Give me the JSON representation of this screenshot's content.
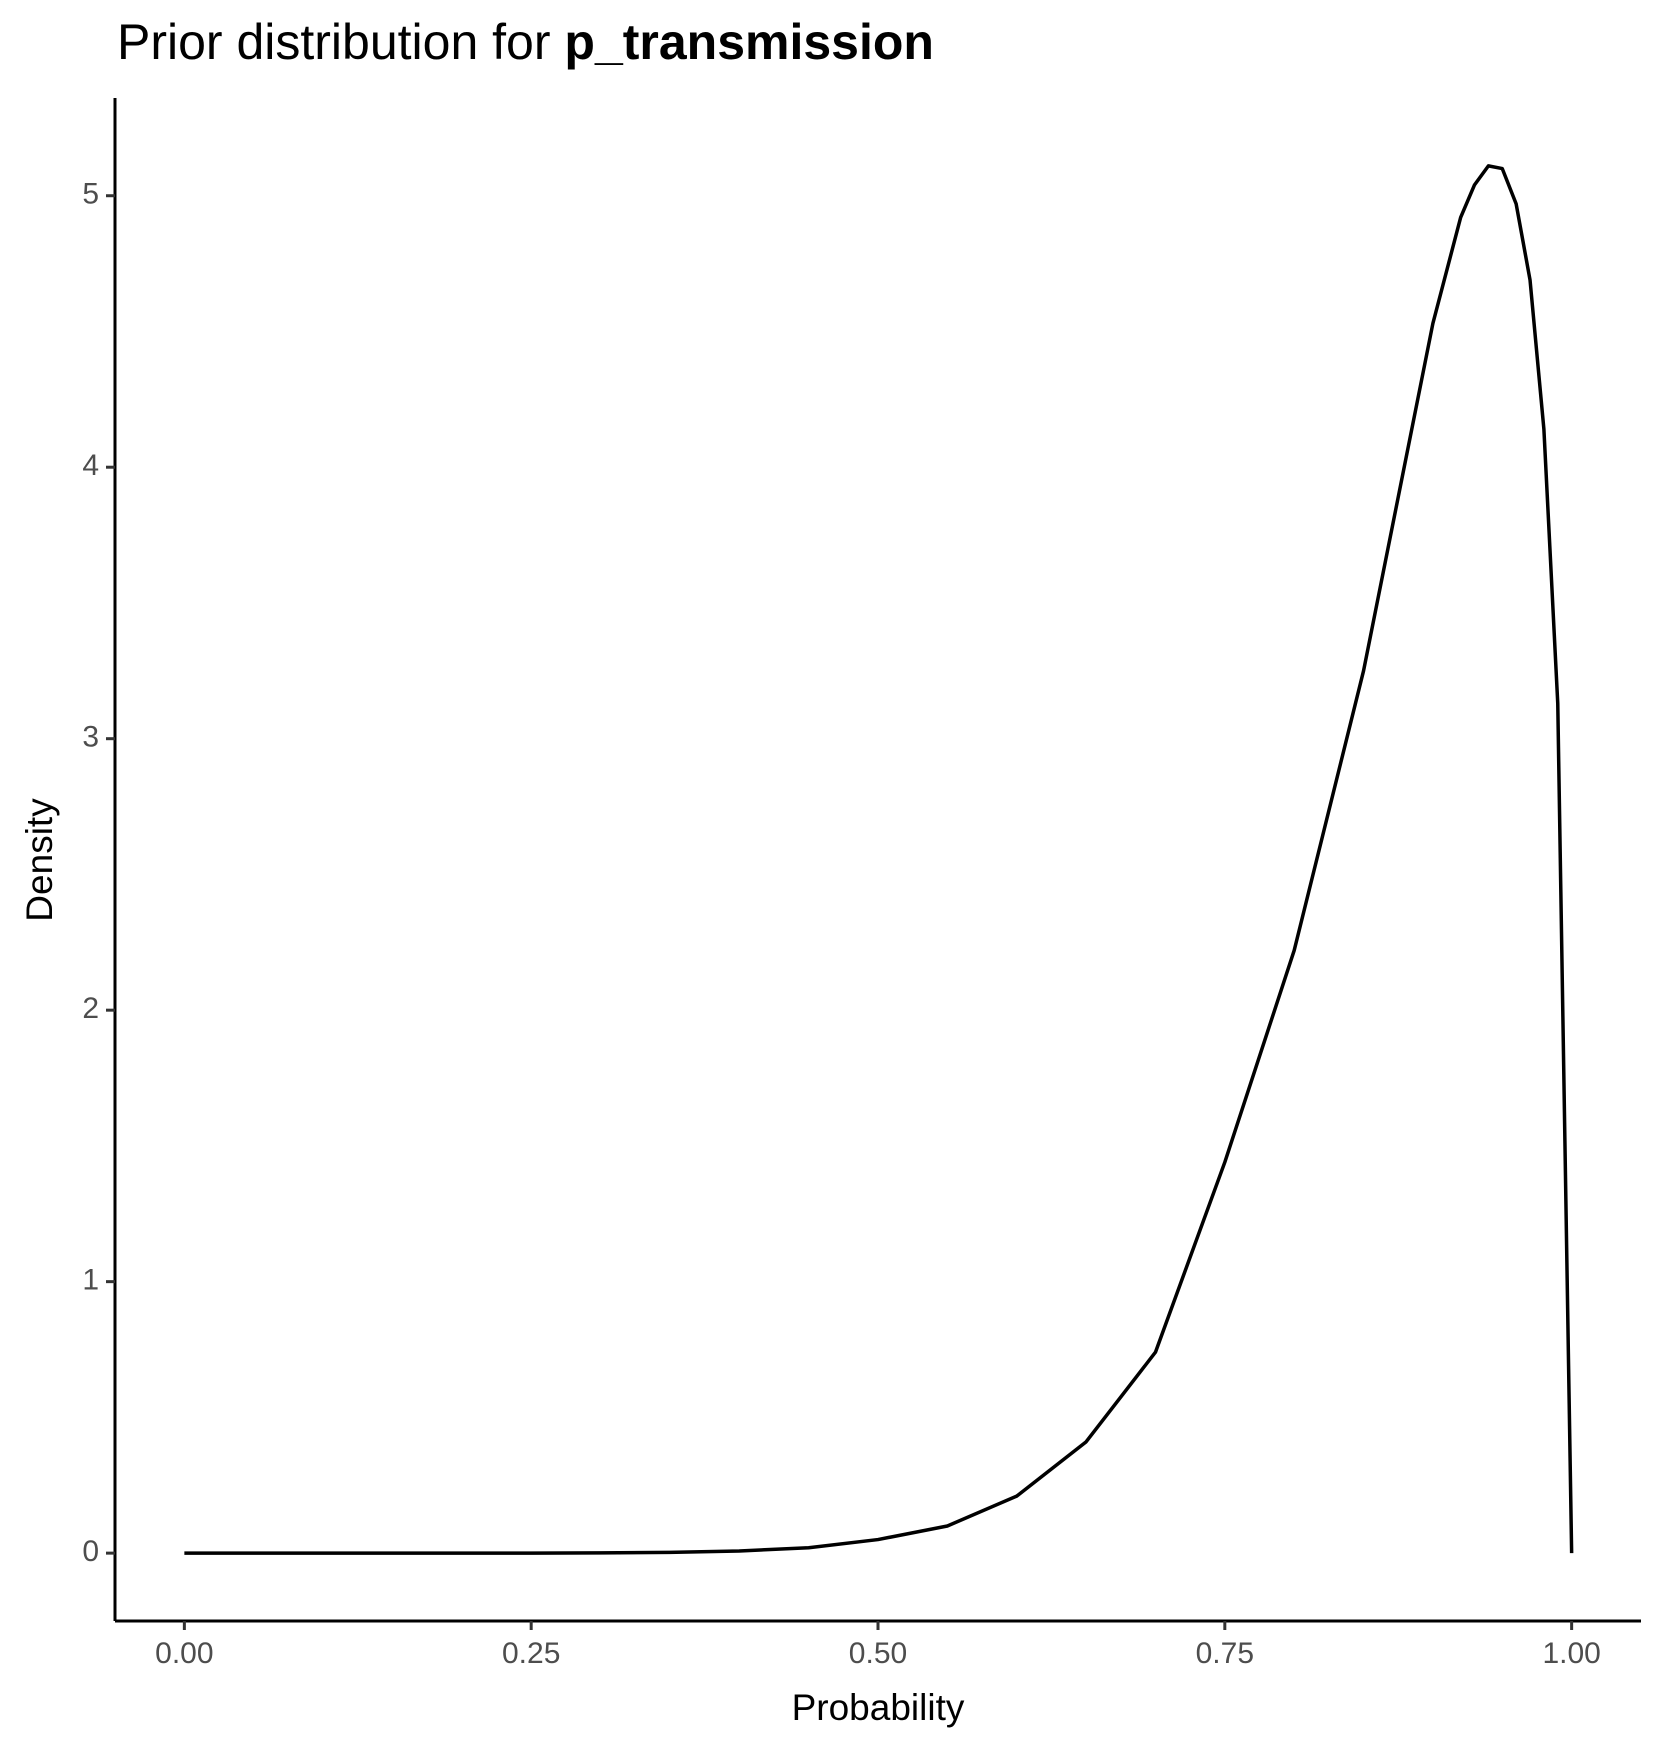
{
  "chart_data": {
    "type": "line",
    "title": [
      "Prior distribution for",
      "p_transmission"
    ],
    "x_label": "Probability",
    "y_label": "Density",
    "x": [
      0,
      0.05,
      0.1,
      0.15,
      0.2,
      0.25,
      0.3,
      0.35,
      0.4,
      0.45,
      0.5,
      0.55,
      0.6,
      0.65,
      0.7,
      0.75,
      0.8,
      0.85,
      0.9,
      0.92,
      0.93,
      0.94,
      0.95,
      0.96,
      0.97,
      0.98,
      0.99,
      1
    ],
    "values": [
      0,
      0,
      0,
      0,
      0,
      0,
      0.001,
      0.003,
      0.008,
      0.02,
      0.05,
      0.1,
      0.21,
      0.41,
      0.74,
      1.44,
      2.22,
      3.25,
      4.53,
      4.92,
      5.04,
      5.11,
      5.1,
      4.97,
      4.69,
      4.14,
      3.13,
      0
    ],
    "color": "#000000",
    "xlim": [
      -0.05,
      1.05
    ],
    "ylim": [
      -0.25,
      5.36
    ],
    "xticks": [
      {
        "value": 0,
        "label": "0.00"
      },
      {
        "value": 0.25,
        "label": "0.25"
      },
      {
        "value": 0.5,
        "label": "0.50"
      },
      {
        "value": 0.75,
        "label": "0.75"
      },
      {
        "value": 1,
        "label": "1.00"
      }
    ],
    "yticks": [
      0,
      1,
      2,
      3,
      4,
      5
    ],
    "grid": false
  }
}
